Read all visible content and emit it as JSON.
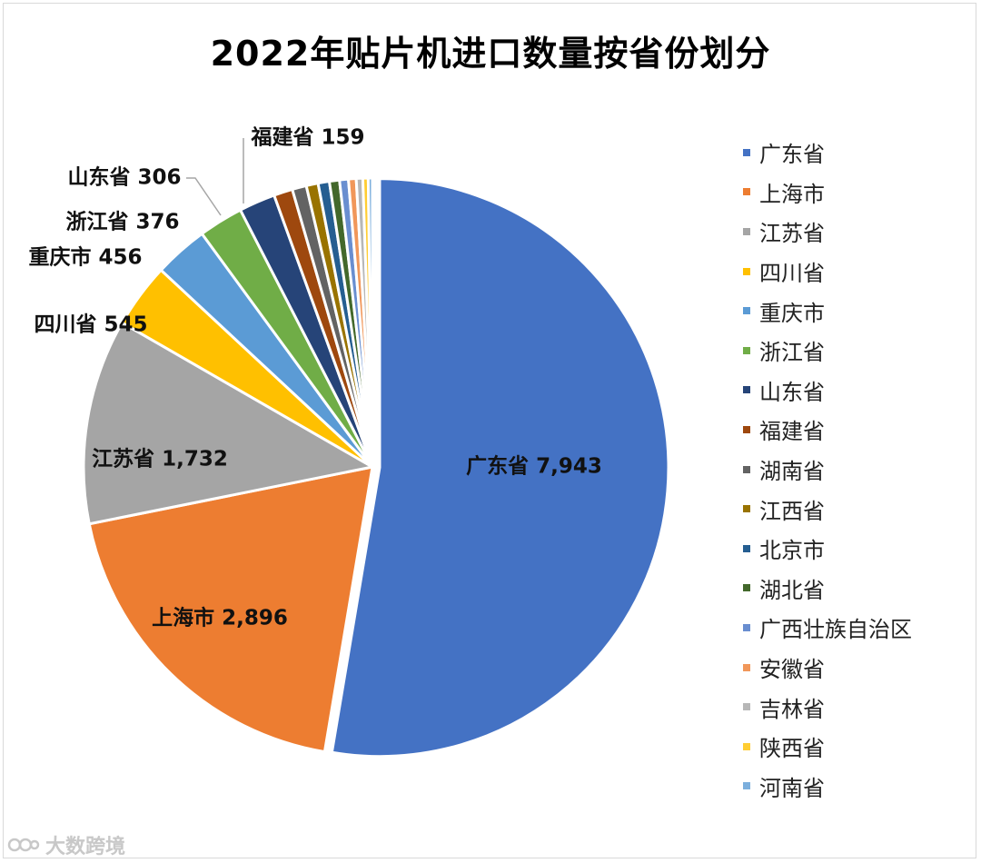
{
  "chart_data": {
    "type": "pie",
    "title": "2022年贴片机进口数量按省份划分",
    "legend_position": "right",
    "categories": [
      "广东省",
      "上海市",
      "江苏省",
      "四川省",
      "重庆市",
      "浙江省",
      "山东省",
      "福建省",
      "湖南省",
      "江西省",
      "北京市",
      "湖北省",
      "广西壮族自治区",
      "安徽省",
      "吉林省",
      "陕西省",
      "河南省"
    ],
    "values": [
      7943,
      2896,
      1732,
      545,
      456,
      376,
      306,
      159,
      120,
      100,
      95,
      85,
      75,
      65,
      55,
      45,
      35
    ],
    "data_labels": [
      {
        "category": "广东省",
        "text": "广东省  7,943"
      },
      {
        "category": "上海市",
        "text": "上海市  2,896"
      },
      {
        "category": "江苏省",
        "text": "江苏省  1,732"
      },
      {
        "category": "四川省",
        "text": "四川省  545"
      },
      {
        "category": "重庆市",
        "text": "重庆市  456"
      },
      {
        "category": "浙江省",
        "text": "浙江省  376"
      },
      {
        "category": "山东省",
        "text": "山东省  306"
      },
      {
        "category": "福建省",
        "text": "福建省  159"
      }
    ],
    "colors": [
      "#4472C4",
      "#ED7D31",
      "#A5A5A5",
      "#FFC000",
      "#5B9BD5",
      "#70AD47",
      "#264478",
      "#9E480E",
      "#636363",
      "#997300",
      "#255E91",
      "#43682B",
      "#698ED0",
      "#F1975A",
      "#B7B7B7",
      "#FFCD33",
      "#7CAFDD"
    ]
  },
  "watermark": {
    "text": "大数跨境"
  }
}
